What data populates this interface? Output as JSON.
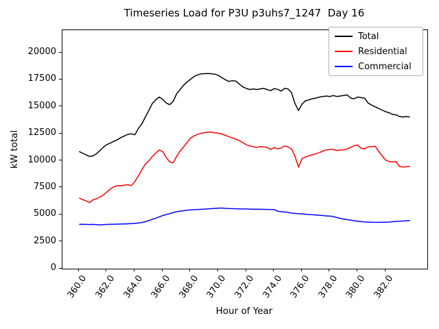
{
  "title": "Timeseries Load for P3U p3uhs7_1247  Day 16",
  "chart_data": {
    "type": "line",
    "title": "Timeseries Load for P3U p3uhs7_1247  Day 16",
    "xlabel": "Hour of Year",
    "ylabel": "kW total",
    "xlim": [
      358.8,
      385.0
    ],
    "ylim": [
      0,
      22100
    ],
    "grid": false,
    "legend_position": "upper right",
    "xticks": [
      360,
      362,
      364,
      366,
      368,
      370,
      372,
      374,
      376,
      378,
      380,
      382
    ],
    "xtick_labels": [
      "360.0",
      "362.0",
      "364.0",
      "366.0",
      "368.0",
      "370.0",
      "372.0",
      "374.0",
      "376.0",
      "378.0",
      "380.0",
      "382.0"
    ],
    "yticks": [
      0,
      2500,
      5000,
      7500,
      10000,
      12500,
      15000,
      17500,
      20000
    ],
    "ytick_labels": [
      "0",
      "2500",
      "5000",
      "7500",
      "10000",
      "12500",
      "15000",
      "17500",
      "20000"
    ],
    "x_start": 360.0,
    "x_step": 0.25,
    "x_end": 383.75,
    "series": [
      {
        "name": "Total",
        "color": "#000000",
        "values": [
          10850,
          10700,
          10550,
          10400,
          10450,
          10650,
          10950,
          11270,
          11500,
          11650,
          11800,
          11950,
          12150,
          12300,
          12450,
          12500,
          12400,
          13000,
          13400,
          14050,
          14650,
          15300,
          15650,
          15900,
          15700,
          15350,
          15200,
          15500,
          16200,
          16600,
          17000,
          17300,
          17550,
          17800,
          17950,
          18050,
          18070,
          18080,
          18060,
          18020,
          17900,
          17700,
          17500,
          17350,
          17420,
          17380,
          17100,
          16850,
          16700,
          16600,
          16650,
          16600,
          16650,
          16700,
          16600,
          16500,
          16680,
          16620,
          16450,
          16700,
          16650,
          16300,
          15300,
          14650,
          15250,
          15550,
          15650,
          15750,
          15800,
          15900,
          15950,
          16000,
          15950,
          16050,
          15950,
          16000,
          16050,
          16100,
          15800,
          15750,
          15900,
          15850,
          15800,
          15350,
          15150,
          15000,
          14850,
          14700,
          14550,
          14450,
          14300,
          14250,
          14100,
          14050,
          14100,
          14050
        ]
      },
      {
        "name": "Residential",
        "color": "#ff0000",
        "values": [
          6550,
          6400,
          6280,
          6120,
          6380,
          6490,
          6630,
          6840,
          7120,
          7400,
          7590,
          7700,
          7680,
          7740,
          7790,
          7700,
          8080,
          8600,
          9150,
          9680,
          9990,
          10400,
          10700,
          11000,
          10850,
          10300,
          9900,
          9800,
          10400,
          10900,
          11300,
          11700,
          12100,
          12300,
          12440,
          12550,
          12600,
          12650,
          12650,
          12600,
          12550,
          12480,
          12350,
          12230,
          12120,
          12000,
          11860,
          11690,
          11480,
          11370,
          11310,
          11230,
          11310,
          11280,
          11230,
          11050,
          11230,
          11100,
          11180,
          11370,
          11270,
          11100,
          10400,
          9400,
          10200,
          10350,
          10460,
          10550,
          10650,
          10750,
          10900,
          11000,
          11050,
          11050,
          10950,
          11000,
          11000,
          11100,
          11250,
          11400,
          11450,
          11150,
          11100,
          11300,
          11300,
          11350,
          10900,
          10450,
          10060,
          9930,
          9890,
          9930,
          9470,
          9420,
          9450,
          9480
        ]
      },
      {
        "name": "Commercial",
        "color": "#0000ff",
        "values": [
          4100,
          4110,
          4100,
          4090,
          4100,
          4080,
          4060,
          4080,
          4100,
          4110,
          4120,
          4130,
          4140,
          4150,
          4160,
          4180,
          4200,
          4230,
          4280,
          4350,
          4450,
          4570,
          4680,
          4800,
          4920,
          5020,
          5100,
          5200,
          5280,
          5330,
          5370,
          5420,
          5450,
          5470,
          5490,
          5500,
          5520,
          5540,
          5560,
          5590,
          5600,
          5620,
          5590,
          5570,
          5560,
          5550,
          5540,
          5530,
          5530,
          5520,
          5510,
          5510,
          5500,
          5500,
          5490,
          5490,
          5480,
          5330,
          5280,
          5250,
          5220,
          5150,
          5120,
          5100,
          5080,
          5050,
          5020,
          5000,
          4970,
          4950,
          4920,
          4890,
          4870,
          4830,
          4740,
          4670,
          4600,
          4550,
          4500,
          4440,
          4400,
          4360,
          4330,
          4310,
          4300,
          4290,
          4290,
          4300,
          4300,
          4320,
          4350,
          4380,
          4400,
          4420,
          4440,
          4460
        ]
      }
    ]
  }
}
